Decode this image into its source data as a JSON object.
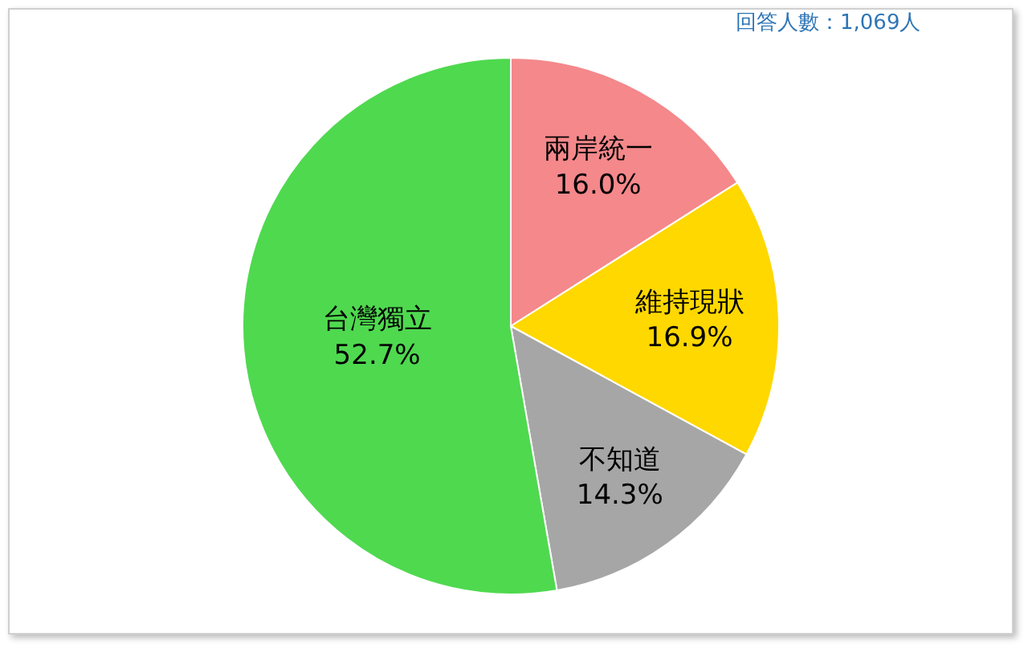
{
  "chart_data": {
    "type": "pie",
    "categories": [
      "兩岸統一",
      "維持現狀",
      "不知道",
      "台灣獨立"
    ],
    "values": [
      16.0,
      16.9,
      14.3,
      52.7
    ],
    "value_labels": [
      "16.0%",
      "16.9%",
      "14.3%",
      "52.7%"
    ],
    "colors": [
      "#f4888b",
      "#ffd800",
      "#a6a6a6",
      "#4fd94f"
    ],
    "annotations": [
      "回答人數：1,069人"
    ],
    "legend": false
  }
}
